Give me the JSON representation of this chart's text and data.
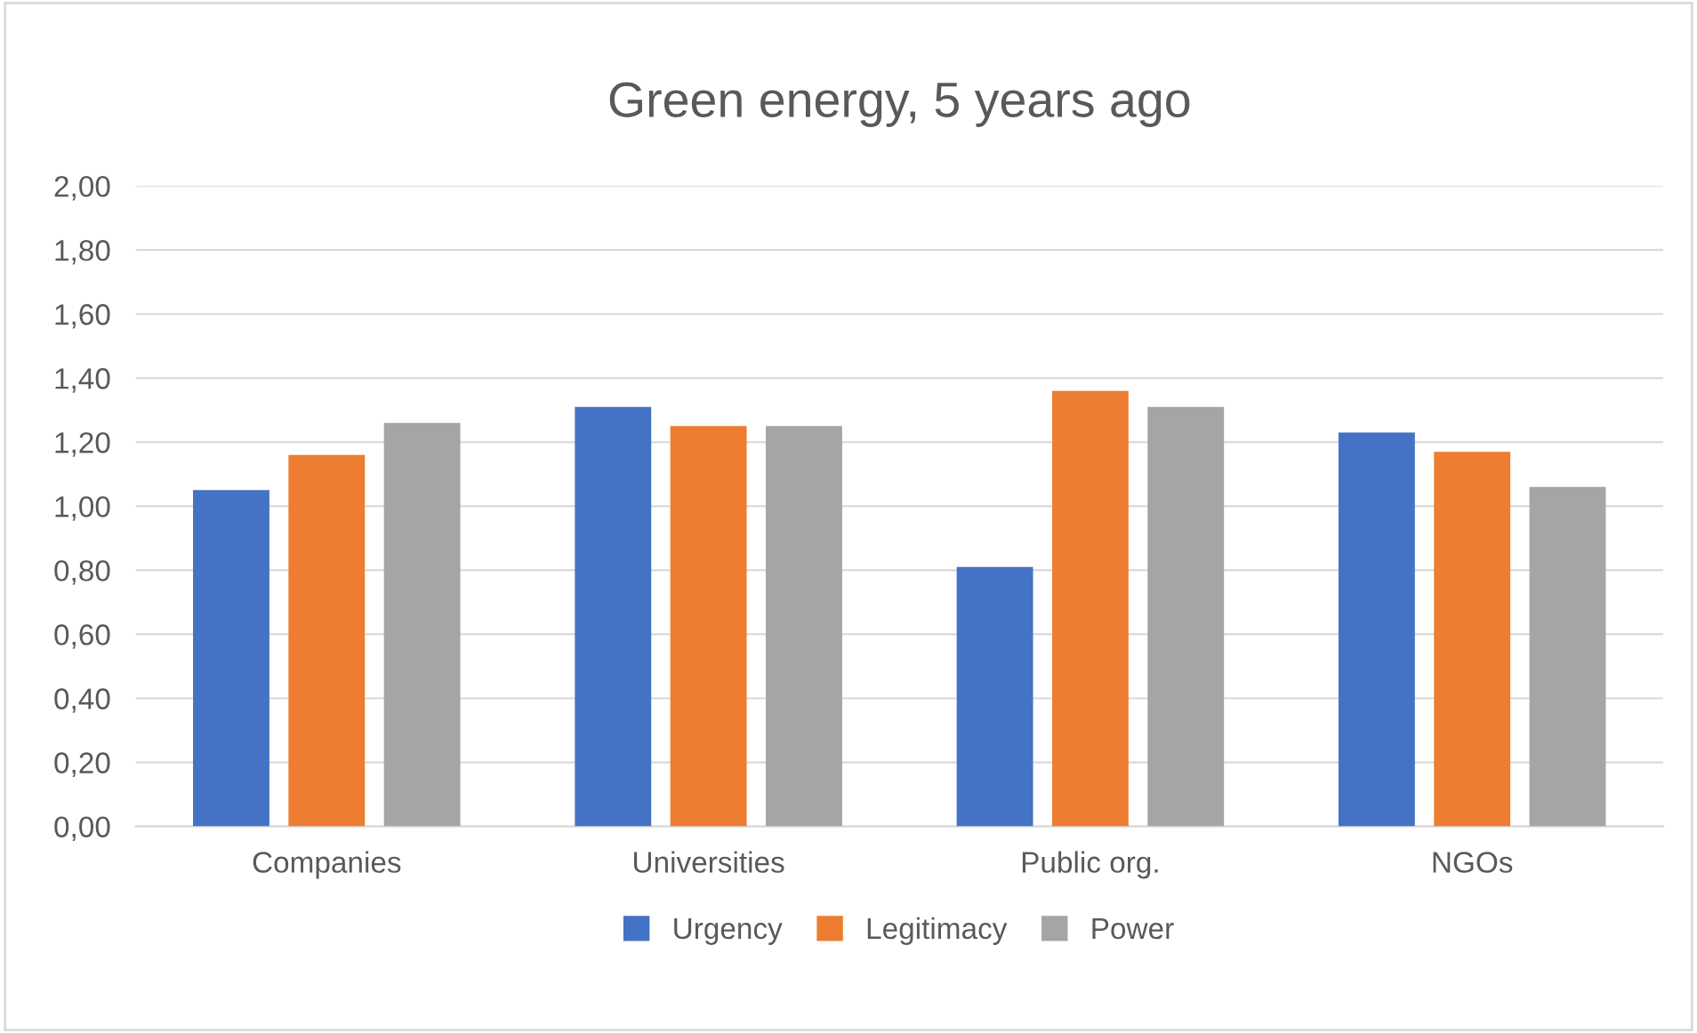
{
  "chart_data": {
    "type": "bar",
    "title": "Green energy, 5 years ago",
    "categories": [
      "Companies",
      "Universities",
      "Public org.",
      "NGOs"
    ],
    "series": [
      {
        "name": "Urgency",
        "color": "#4472c4",
        "values": [
          1.05,
          1.31,
          0.81,
          1.23
        ]
      },
      {
        "name": "Legitimacy",
        "color": "#ed7d31",
        "values": [
          1.16,
          1.25,
          1.36,
          1.17
        ]
      },
      {
        "name": "Power",
        "color": "#a5a5a5",
        "values": [
          1.26,
          1.25,
          1.31,
          1.06
        ]
      }
    ],
    "ylim": [
      0,
      2
    ],
    "yticks": [
      {
        "value": 0,
        "label": "0,00"
      },
      {
        "value": 0.2,
        "label": "0,20"
      },
      {
        "value": 0.4,
        "label": "0,40"
      },
      {
        "value": 0.6,
        "label": "0,60"
      },
      {
        "value": 0.8,
        "label": "0,80"
      },
      {
        "value": 1,
        "label": "1,00"
      },
      {
        "value": 1.2,
        "label": "1,20"
      },
      {
        "value": 1.4,
        "label": "1,40"
      },
      {
        "value": 1.6,
        "label": "1,60"
      },
      {
        "value": 1.8,
        "label": "1,80"
      },
      {
        "value": 2,
        "label": "2,00"
      }
    ],
    "grid": "y",
    "legend": "bottom"
  }
}
